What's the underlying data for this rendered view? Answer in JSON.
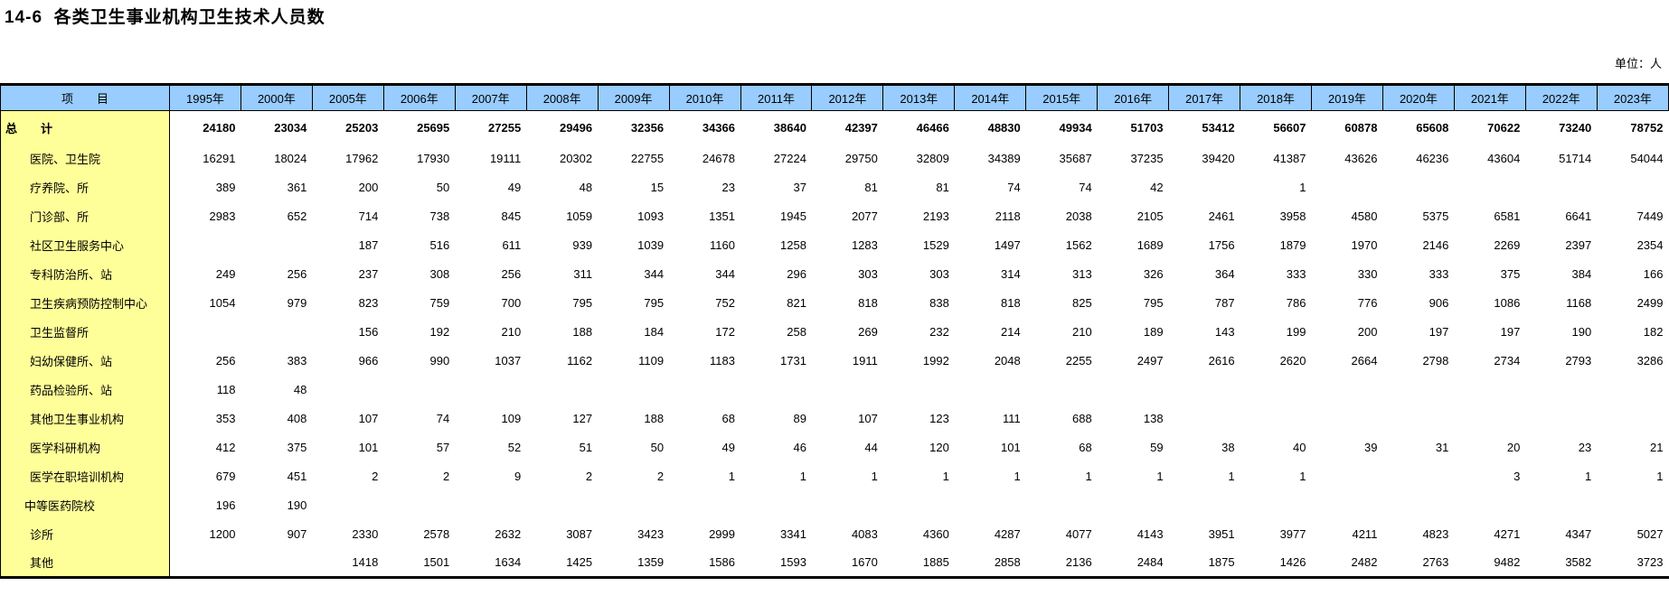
{
  "page": {
    "title": "14-6  各类卫生事业机构卫生技术人员数",
    "unit_note": "单位：人"
  },
  "colors": {
    "header_bg": "#99CCFF",
    "label_column_bg": "#FFFF99",
    "border": "#000000"
  },
  "table": {
    "header": {
      "item_label": "项　　目",
      "years": [
        "1995年",
        "2000年",
        "2005年",
        "2006年",
        "2007年",
        "2008年",
        "2009年",
        "2010年",
        "2011年",
        "2012年",
        "2013年",
        "2014年",
        "2015年",
        "2016年",
        "2017年",
        "2018年",
        "2019年",
        "2020年",
        "2021年",
        "2022年",
        "2023年"
      ]
    },
    "rows": [
      {
        "label": "总　　计",
        "bold": true,
        "level": 0,
        "values": [
          "24180",
          "23034",
          "25203",
          "25695",
          "27255",
          "29496",
          "32356",
          "34366",
          "38640",
          "42397",
          "46466",
          "48830",
          "49934",
          "51703",
          "53412",
          "56607",
          "60878",
          "65608",
          "70622",
          "73240",
          "78752"
        ]
      },
      {
        "label": "医院、卫生院",
        "bold": false,
        "level": 2,
        "values": [
          "16291",
          "18024",
          "17962",
          "17930",
          "19111",
          "20302",
          "22755",
          "24678",
          "27224",
          "29750",
          "32809",
          "34389",
          "35687",
          "37235",
          "39420",
          "41387",
          "43626",
          "46236",
          "43604",
          "51714",
          "54044"
        ]
      },
      {
        "label": "疗养院、所",
        "bold": false,
        "level": 2,
        "values": [
          "389",
          "361",
          "200",
          "50",
          "49",
          "48",
          "15",
          "23",
          "37",
          "81",
          "81",
          "74",
          "74",
          "42",
          "",
          "1",
          "",
          "",
          "",
          "",
          ""
        ]
      },
      {
        "label": "门诊部、所",
        "bold": false,
        "level": 2,
        "values": [
          "2983",
          "652",
          "714",
          "738",
          "845",
          "1059",
          "1093",
          "1351",
          "1945",
          "2077",
          "2193",
          "2118",
          "2038",
          "2105",
          "2461",
          "3958",
          "4580",
          "5375",
          "6581",
          "6641",
          "7449"
        ]
      },
      {
        "label": "社区卫生服务中心",
        "bold": false,
        "level": 2,
        "values": [
          "",
          "",
          "187",
          "516",
          "611",
          "939",
          "1039",
          "1160",
          "1258",
          "1283",
          "1529",
          "1497",
          "1562",
          "1689",
          "1756",
          "1879",
          "1970",
          "2146",
          "2269",
          "2397",
          "2354"
        ]
      },
      {
        "label": "专科防治所、站",
        "bold": false,
        "level": 2,
        "values": [
          "249",
          "256",
          "237",
          "308",
          "256",
          "311",
          "344",
          "344",
          "296",
          "303",
          "303",
          "314",
          "313",
          "326",
          "364",
          "333",
          "330",
          "333",
          "375",
          "384",
          "166"
        ]
      },
      {
        "label": "卫生疾病预防控制中心",
        "bold": false,
        "level": 2,
        "values": [
          "1054",
          "979",
          "823",
          "759",
          "700",
          "795",
          "795",
          "752",
          "821",
          "818",
          "838",
          "818",
          "825",
          "795",
          "787",
          "786",
          "776",
          "906",
          "1086",
          "1168",
          "2499"
        ]
      },
      {
        "label": "卫生监督所",
        "bold": false,
        "level": 2,
        "values": [
          "",
          "",
          "156",
          "192",
          "210",
          "188",
          "184",
          "172",
          "258",
          "269",
          "232",
          "214",
          "210",
          "189",
          "143",
          "199",
          "200",
          "197",
          "197",
          "190",
          "182"
        ]
      },
      {
        "label": "妇幼保健所、站",
        "bold": false,
        "level": 2,
        "values": [
          "256",
          "383",
          "966",
          "990",
          "1037",
          "1162",
          "1109",
          "1183",
          "1731",
          "1911",
          "1992",
          "2048",
          "2255",
          "2497",
          "2616",
          "2620",
          "2664",
          "2798",
          "2734",
          "2793",
          "3286"
        ]
      },
      {
        "label": "药品检验所、站",
        "bold": false,
        "level": 2,
        "values": [
          "118",
          "48",
          "",
          "",
          "",
          "",
          "",
          "",
          "",
          "",
          "",
          "",
          "",
          "",
          "",
          "",
          "",
          "",
          "",
          "",
          ""
        ]
      },
      {
        "label": "其他卫生事业机构",
        "bold": false,
        "level": 2,
        "values": [
          "353",
          "408",
          "107",
          "74",
          "109",
          "127",
          "188",
          "68",
          "89",
          "107",
          "123",
          "111",
          "688",
          "138",
          "",
          "",
          "",
          "",
          "",
          "",
          ""
        ]
      },
      {
        "label": "医学科研机构",
        "bold": false,
        "level": 2,
        "values": [
          "412",
          "375",
          "101",
          "57",
          "52",
          "51",
          "50",
          "49",
          "46",
          "44",
          "120",
          "101",
          "68",
          "59",
          "38",
          "40",
          "39",
          "31",
          "20",
          "23",
          "21"
        ]
      },
      {
        "label": "医学在职培训机构",
        "bold": false,
        "level": 2,
        "values": [
          "679",
          "451",
          "2",
          "2",
          "9",
          "2",
          "2",
          "1",
          "1",
          "1",
          "1",
          "1",
          "1",
          "1",
          "1",
          "1",
          "",
          "",
          "3",
          "1",
          "1"
        ]
      },
      {
        "label": "中等医药院校",
        "bold": false,
        "level": 1,
        "values": [
          "196",
          "190",
          "",
          "",
          "",
          "",
          "",
          "",
          "",
          "",
          "",
          "",
          "",
          "",
          "",
          "",
          "",
          "",
          "",
          "",
          ""
        ]
      },
      {
        "label": "诊所",
        "bold": false,
        "level": 2,
        "values": [
          "1200",
          "907",
          "2330",
          "2578",
          "2632",
          "3087",
          "3423",
          "2999",
          "3341",
          "4083",
          "4360",
          "4287",
          "4077",
          "4143",
          "3951",
          "3977",
          "4211",
          "4823",
          "4271",
          "4347",
          "5027"
        ]
      },
      {
        "label": "其他",
        "bold": false,
        "level": 2,
        "values": [
          "",
          "",
          "1418",
          "1501",
          "1634",
          "1425",
          "1359",
          "1586",
          "1593",
          "1670",
          "1885",
          "2858",
          "2136",
          "2484",
          "1875",
          "1426",
          "2482",
          "2763",
          "9482",
          "3582",
          "3723"
        ]
      }
    ]
  }
}
